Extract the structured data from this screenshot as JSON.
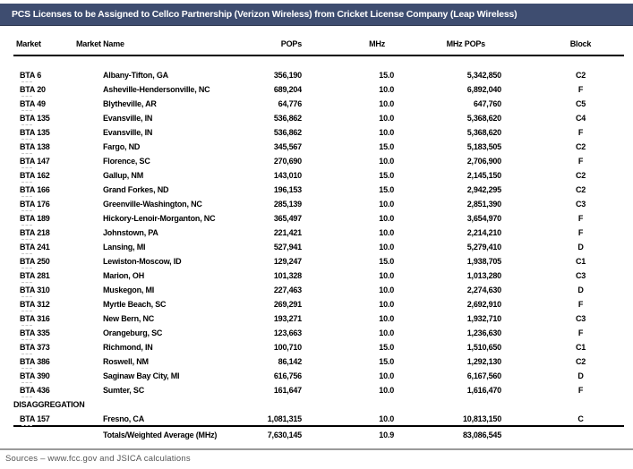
{
  "title": "PCS Licenses to be Assigned to Cellco Partnership (Verizon Wireless) from Cricket License Company (Leap Wireless)",
  "colors": {
    "title_bar": "#3E4D70",
    "title_text": "#FFFFFF",
    "rule_gray": "#9A9A9A"
  },
  "table": {
    "columns": {
      "market": "Market",
      "name": "Market Name",
      "pops": "POPs",
      "mhz": "MHz",
      "mhz_pops": "MHz POPs",
      "block": "Block"
    },
    "rows": [
      {
        "market": "BTA 6",
        "name": "Albany-Tifton, GA",
        "pops": "356,190",
        "mhz": "15.0",
        "mhz_pops": "5,342,850",
        "block": "C2"
      },
      {
        "market": "BTA 20",
        "name": "Asheville-Hendersonville, NC",
        "pops": "689,204",
        "mhz": "10.0",
        "mhz_pops": "6,892,040",
        "block": "F"
      },
      {
        "market": "BTA 49",
        "name": "Blytheville, AR",
        "pops": "64,776",
        "mhz": "10.0",
        "mhz_pops": "647,760",
        "block": "C5"
      },
      {
        "market": "BTA 135",
        "name": "Evansville, IN",
        "pops": "536,862",
        "mhz": "10.0",
        "mhz_pops": "5,368,620",
        "block": "C4"
      },
      {
        "market": "BTA 135",
        "name": "Evansville, IN",
        "pops": "536,862",
        "mhz": "10.0",
        "mhz_pops": "5,368,620",
        "block": "F"
      },
      {
        "market": "BTA 138",
        "name": "Fargo, ND",
        "pops": "345,567",
        "mhz": "15.0",
        "mhz_pops": "5,183,505",
        "block": "C2"
      },
      {
        "market": "BTA 147",
        "name": "Florence, SC",
        "pops": "270,690",
        "mhz": "10.0",
        "mhz_pops": "2,706,900",
        "block": "F"
      },
      {
        "market": "BTA 162",
        "name": "Gallup, NM",
        "pops": "143,010",
        "mhz": "15.0",
        "mhz_pops": "2,145,150",
        "block": "C2"
      },
      {
        "market": "BTA 166",
        "name": "Grand Forkes, ND",
        "pops": "196,153",
        "mhz": "15.0",
        "mhz_pops": "2,942,295",
        "block": "C2"
      },
      {
        "market": "BTA 176",
        "name": "Greenville-Washington, NC",
        "pops": "285,139",
        "mhz": "10.0",
        "mhz_pops": "2,851,390",
        "block": "C3"
      },
      {
        "market": "BTA 189",
        "name": "Hickory-Lenoir-Morganton, NC",
        "pops": "365,497",
        "mhz": "10.0",
        "mhz_pops": "3,654,970",
        "block": "F"
      },
      {
        "market": "BTA 218",
        "name": "Johnstown, PA",
        "pops": "221,421",
        "mhz": "10.0",
        "mhz_pops": "2,214,210",
        "block": "F"
      },
      {
        "market": "BTA 241",
        "name": "Lansing, MI",
        "pops": "527,941",
        "mhz": "10.0",
        "mhz_pops": "5,279,410",
        "block": "D"
      },
      {
        "market": "BTA 250",
        "name": "Lewiston-Moscow, ID",
        "pops": "129,247",
        "mhz": "15.0",
        "mhz_pops": "1,938,705",
        "block": "C1"
      },
      {
        "market": "BTA 281",
        "name": "Marion, OH",
        "pops": "101,328",
        "mhz": "10.0",
        "mhz_pops": "1,013,280",
        "block": "C3"
      },
      {
        "market": "BTA 310",
        "name": "Muskegon, MI",
        "pops": "227,463",
        "mhz": "10.0",
        "mhz_pops": "2,274,630",
        "block": "D"
      },
      {
        "market": "BTA 312",
        "name": "Myrtle Beach, SC",
        "pops": "269,291",
        "mhz": "10.0",
        "mhz_pops": "2,692,910",
        "block": "F"
      },
      {
        "market": "BTA 316",
        "name": "New Bern, NC",
        "pops": "193,271",
        "mhz": "10.0",
        "mhz_pops": "1,932,710",
        "block": "C3"
      },
      {
        "market": "BTA 335",
        "name": "Orangeburg, SC",
        "pops": "123,663",
        "mhz": "10.0",
        "mhz_pops": "1,236,630",
        "block": "F"
      },
      {
        "market": "BTA 373",
        "name": "Richmond, IN",
        "pops": "100,710",
        "mhz": "15.0",
        "mhz_pops": "1,510,650",
        "block": "C1"
      },
      {
        "market": "BTA 386",
        "name": "Roswell, NM",
        "pops": "86,142",
        "mhz": "15.0",
        "mhz_pops": "1,292,130",
        "block": "C2"
      },
      {
        "market": "BTA 390",
        "name": "Saginaw Bay City, MI",
        "pops": "616,756",
        "mhz": "10.0",
        "mhz_pops": "6,167,560",
        "block": "D"
      },
      {
        "market": "BTA 436",
        "name": "Sumter, SC",
        "pops": "161,647",
        "mhz": "10.0",
        "mhz_pops": "1,616,470",
        "block": "F"
      }
    ],
    "disaggregation_label": "DISAGGREGATION",
    "disaggregation_rows": [
      {
        "market": "BTA 157",
        "name": "Fresno, CA",
        "pops": "1,081,315",
        "mhz": "10.0",
        "mhz_pops": "10,813,150",
        "block": "C"
      }
    ],
    "totals": {
      "label": "Totals/Weighted Average (MHz)",
      "pops": "7,630,145",
      "mhz": "10.9",
      "mhz_pops": "83,086,545",
      "block": ""
    }
  },
  "footer": {
    "source_note": "Sources – www.fcc.gov and JSICA calculations"
  }
}
